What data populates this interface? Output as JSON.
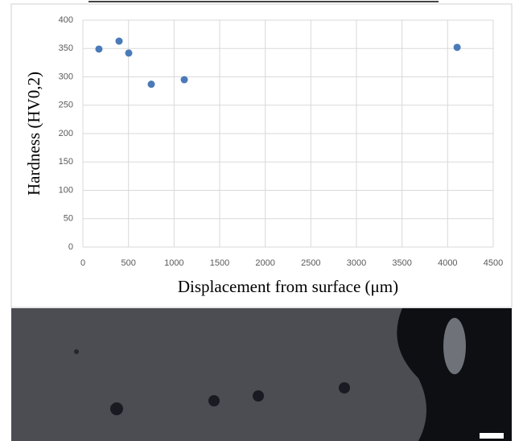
{
  "chart_data": {
    "type": "scatter",
    "x_label": "Displacement from surface (μm)",
    "y_label": "Hardness (HV0,2)",
    "x": [
      176,
      397,
      503,
      750,
      1112,
      4104
    ],
    "values": [
      349,
      363,
      342,
      287,
      295,
      352
    ],
    "color": "#4a7ab8",
    "xlim": [
      0,
      4500
    ],
    "xticks": [
      0,
      500,
      1000,
      1500,
      2000,
      2500,
      3000,
      3500,
      4000,
      4500
    ],
    "ylim": [
      0,
      400
    ],
    "yticks": [
      0,
      50,
      100,
      150,
      200,
      250,
      300,
      350,
      400
    ],
    "grid": true
  }
}
